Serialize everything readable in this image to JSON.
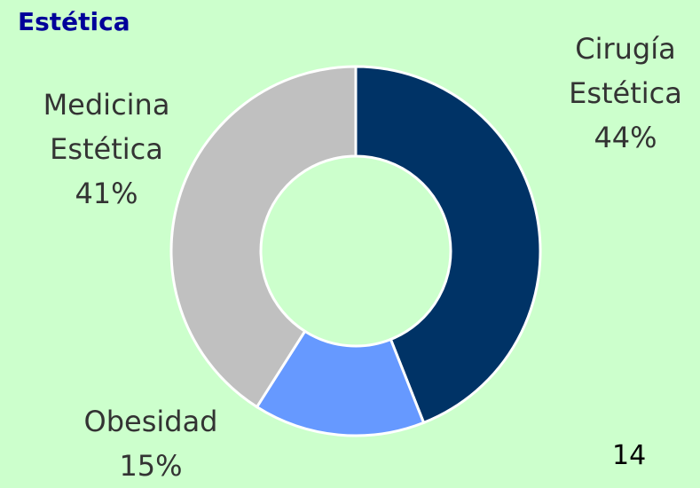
{
  "chart_data": {
    "type": "donut",
    "title": "Estética",
    "categories": [
      "Cirugía Estética",
      "Obesidad",
      "Medicina Estética"
    ],
    "values": [
      44,
      15,
      41
    ],
    "value_labels": [
      "44%",
      "15%",
      "41%"
    ],
    "colors": [
      "#003366",
      "#6699ff",
      "#c0c0c0"
    ]
  },
  "page_number": "14"
}
